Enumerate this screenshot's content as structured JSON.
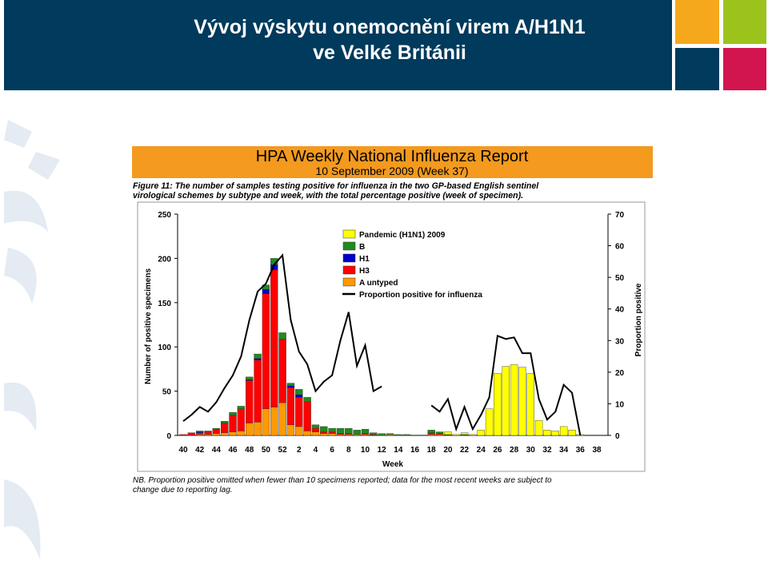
{
  "header": {
    "title": [
      "Vývoj výskytu onemocnění virem A/H1N1",
      "ve Velké Británii"
    ]
  },
  "report": {
    "title": "HPA Weekly National Influenza Report",
    "subtitle": "10 September 2009 (Week 37)",
    "caption": [
      "Figure 11: The number of samples testing positive for influenza in the two GP-based English sentinel",
      "virological schemes by subtype and week, with the total percentage positive (week of specimen)."
    ],
    "note": [
      "NB. Proportion positive omitted when fewer than 10 specimens reported; data for the most recent weeks are subject to",
      "change due to reporting lag."
    ]
  },
  "chart_data": {
    "type": "bar",
    "stacked": true,
    "xlabel": "Week",
    "ylabel": "Number of positive specimens",
    "y2label": "Proportion positive",
    "categories": [
      "40",
      null,
      "42",
      null,
      "44",
      null,
      "46",
      null,
      "48",
      null,
      "50",
      null,
      "52",
      null,
      "2",
      null,
      "4",
      null,
      "6",
      null,
      "8",
      null,
      "10",
      null,
      "12",
      null,
      "14",
      null,
      "16",
      null,
      "18",
      null,
      "20",
      null,
      "22",
      null,
      "24",
      null,
      "26",
      null,
      "28",
      null,
      "30",
      null,
      "32",
      null,
      "34",
      null,
      "36",
      null,
      "38"
    ],
    "ylim": [
      0,
      250
    ],
    "yticks": [
      0,
      50,
      100,
      150,
      200,
      250
    ],
    "y2lim": [
      0,
      70
    ],
    "y2ticks": [
      0,
      10,
      20,
      30,
      40,
      50,
      60,
      70
    ],
    "series": [
      {
        "name": "Pandemic (H1N1) 2009",
        "color": "#ffff00",
        "values": [
          0,
          0,
          0,
          0,
          0,
          0,
          0,
          0,
          0,
          0,
          0,
          0,
          0,
          0,
          0,
          0,
          0,
          0,
          0,
          0,
          0,
          0,
          0,
          0,
          0,
          0,
          0,
          0,
          0,
          0,
          0,
          0,
          3,
          1,
          2,
          1,
          6,
          30,
          70,
          78,
          80,
          77,
          70,
          17,
          6,
          5,
          10,
          6,
          1,
          0,
          0
        ]
      },
      {
        "name": "B",
        "color": "#1e8c1e",
        "values": [
          0,
          0,
          1,
          1,
          1,
          2,
          3,
          3,
          3,
          5,
          5,
          7,
          7,
          3,
          6,
          5,
          4,
          6,
          4,
          6,
          6,
          5,
          5,
          2,
          2,
          1,
          1,
          1,
          0,
          0,
          3,
          2,
          1,
          0,
          1,
          0,
          0,
          0,
          0,
          0,
          0,
          0,
          0,
          0,
          0,
          0,
          0,
          0,
          0,
          0,
          0
        ]
      },
      {
        "name": "H1",
        "color": "#0000cc",
        "values": [
          0,
          0,
          1,
          0,
          0,
          0,
          0,
          0,
          1,
          2,
          5,
          6,
          0,
          2,
          3,
          0,
          0,
          0,
          0,
          0,
          0,
          0,
          0,
          0,
          0,
          0,
          0,
          0,
          0,
          0,
          0,
          0,
          0,
          0,
          0,
          0,
          0,
          0,
          0,
          0,
          0,
          0,
          0,
          0,
          0,
          0,
          0,
          0,
          0,
          0,
          0
        ]
      },
      {
        "name": "H3",
        "color": "#ff0000",
        "values": [
          1,
          3,
          2,
          3,
          5,
          11,
          19,
          25,
          48,
          70,
          130,
          155,
          72,
          42,
          33,
          33,
          4,
          2,
          2,
          1,
          1,
          0,
          1,
          1,
          0,
          0,
          0,
          0,
          0,
          0,
          2,
          1,
          0,
          0,
          0,
          0,
          0,
          0,
          0,
          0,
          0,
          0,
          0,
          0,
          0,
          0,
          0,
          0,
          0,
          0,
          0
        ]
      },
      {
        "name": "A untyped",
        "color": "#ff9900",
        "values": [
          0,
          0,
          1,
          1,
          2,
          3,
          4,
          5,
          14,
          15,
          30,
          32,
          37,
          12,
          10,
          5,
          4,
          2,
          2,
          1,
          1,
          1,
          1,
          0,
          0,
          1,
          0,
          0,
          0,
          0,
          1,
          1,
          0,
          0,
          0,
          0,
          0,
          0,
          0,
          0,
          0,
          0,
          0,
          0,
          0,
          0,
          0,
          0,
          0,
          0,
          0
        ]
      },
      {
        "name": "Proportion positive for influenza",
        "color": "#000000",
        "type": "line",
        "axis": "y2",
        "values": [
          4.5,
          6.5,
          9,
          7.5,
          10.5,
          15,
          19,
          25,
          36.5,
          45.5,
          48,
          54,
          57,
          36.5,
          26.5,
          22.5,
          14,
          17,
          19,
          30,
          39,
          22,
          28.5,
          14,
          15.5,
          null,
          null,
          null,
          null,
          null,
          9.5,
          7.5,
          11.5,
          2,
          9,
          2,
          6.5,
          12,
          31.5,
          30.5,
          31,
          26,
          26,
          11.5,
          5,
          7.5,
          16,
          13.5,
          0,
          null,
          null
        ]
      }
    ]
  }
}
